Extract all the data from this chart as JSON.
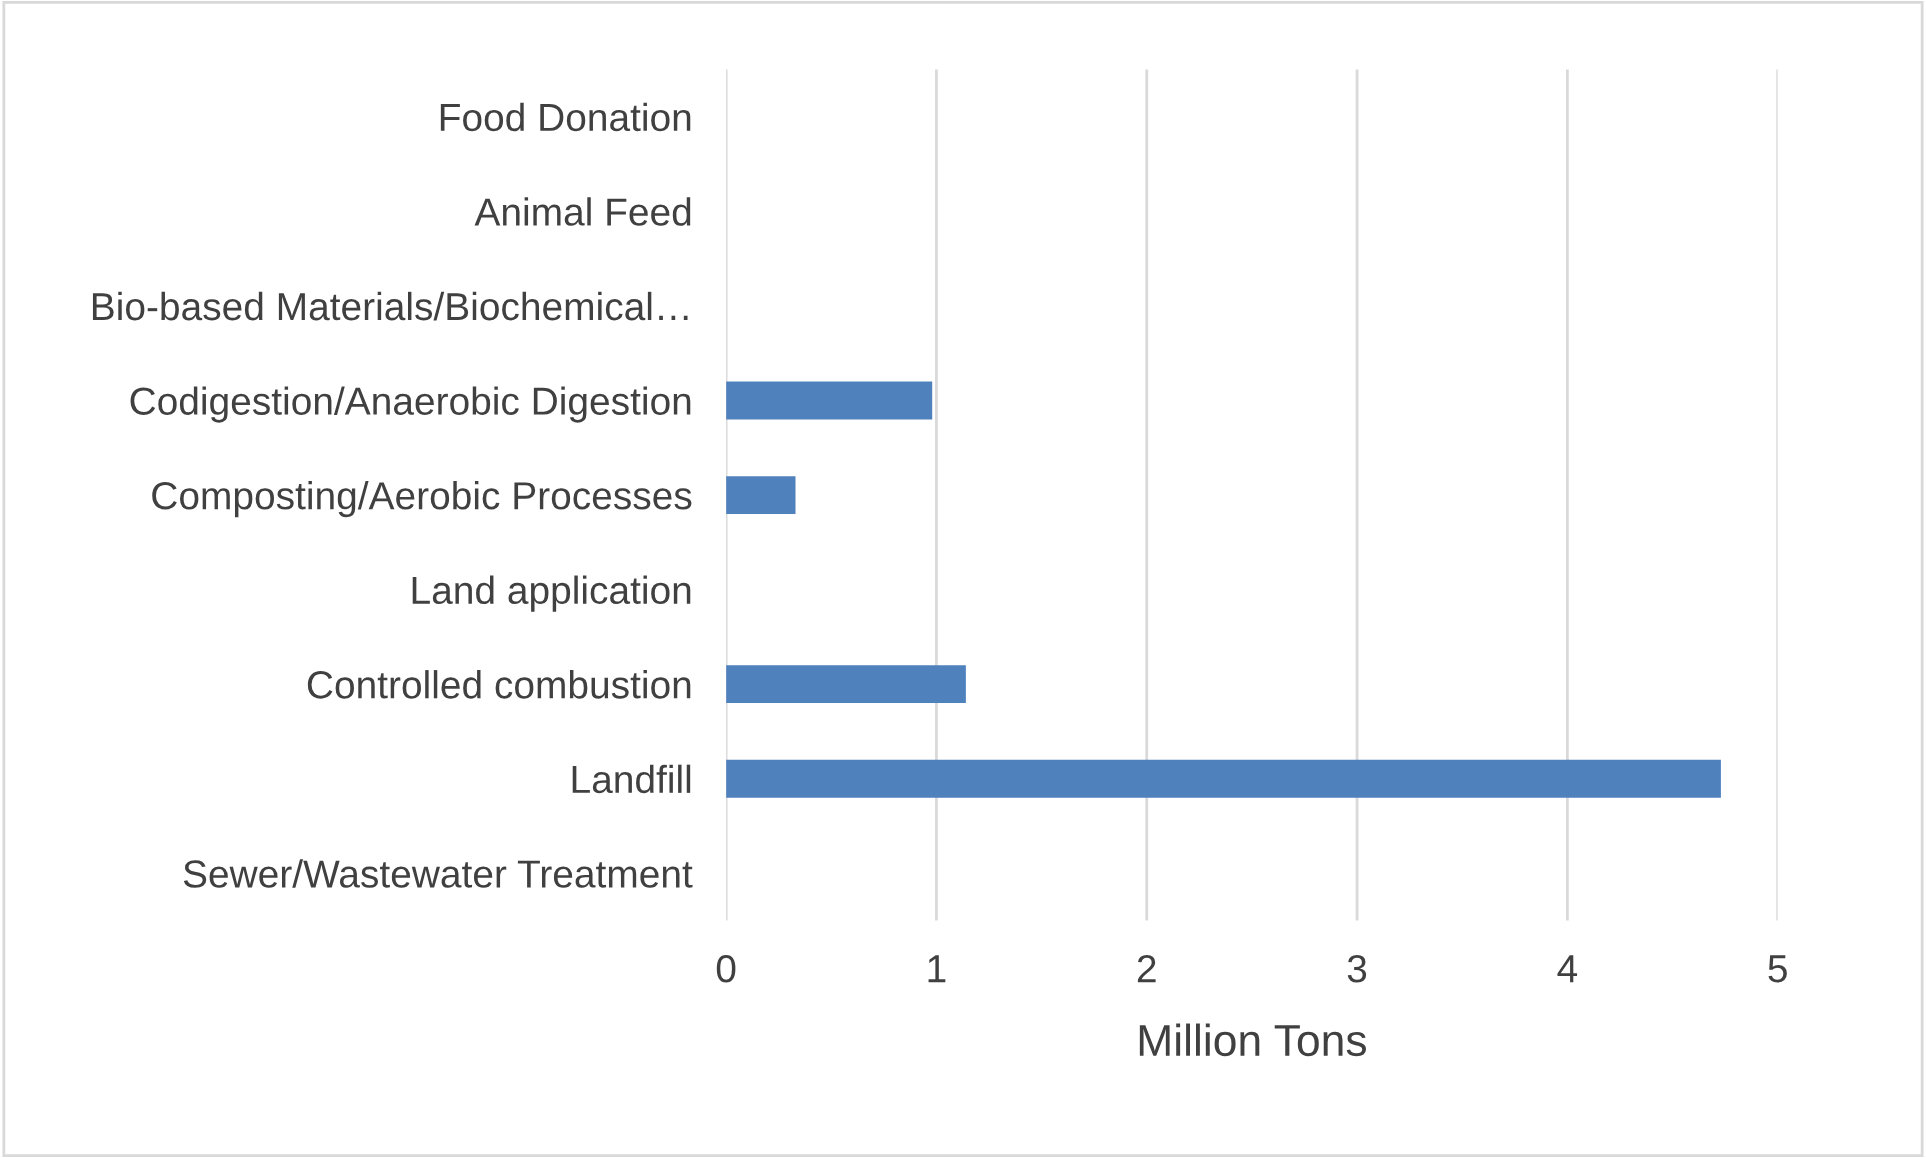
{
  "chart_data": {
    "type": "bar",
    "orientation": "horizontal",
    "xlabel": "Million Tons",
    "categories": [
      "Food Donation",
      "Animal Feed",
      "Bio-based Materials/Biochemical…",
      "Codigestion/Anaerobic Digestion",
      "Composting/Aerobic Processes",
      "Land application",
      "Controlled combustion",
      "Landfill",
      "Sewer/Wastewater Treatment"
    ],
    "values": [
      0,
      0,
      0,
      0.98,
      0.33,
      0,
      1.14,
      4.73,
      0
    ],
    "color": "#4f81bd",
    "xlim": [
      0,
      5
    ],
    "xticks": [
      0,
      1,
      2,
      3,
      4,
      5
    ],
    "grid": "x",
    "legend": false
  }
}
